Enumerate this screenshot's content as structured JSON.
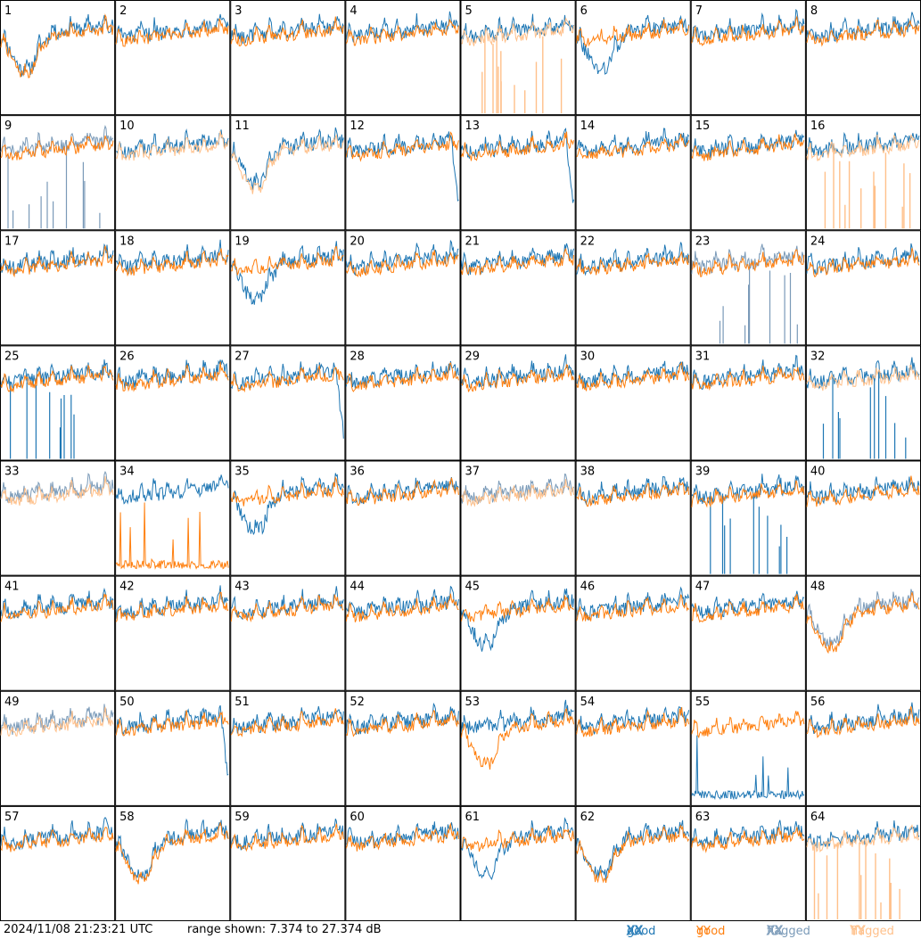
{
  "footer": {
    "timestamp": "2024/11/08 21:23:21 UTC",
    "range_text": "range shown: 7.374 to 27.374 dB"
  },
  "legend": [
    {
      "label_a": "good",
      "label_b": "XX",
      "color": "#1f77b4"
    },
    {
      "label_a": "good",
      "label_b": "YY",
      "color": "#ff7f0e"
    },
    {
      "label_a": "flagged",
      "label_b": "XX",
      "color": "#7a9ab8"
    },
    {
      "label_a": "flagged",
      "label_b": "YY",
      "color": "#ffc08a"
    }
  ],
  "colors": {
    "good_xx": "#1f77b4",
    "good_yy": "#ff7f0e",
    "flagged_xx": "#7a9ab8",
    "flagged_yy": "#ffc08a"
  },
  "chart_data": {
    "type": "line",
    "layout": "small multiples, 8 columns x 8 rows",
    "units": "dB",
    "ylim": [
      7.374,
      27.374
    ],
    "panels": [
      {
        "id": "1",
        "xx": "good",
        "yy": "good",
        "note": "dip"
      },
      {
        "id": "2",
        "xx": "good",
        "yy": "good"
      },
      {
        "id": "3",
        "xx": "good",
        "yy": "good"
      },
      {
        "id": "4",
        "xx": "good",
        "yy": "good"
      },
      {
        "id": "5",
        "xx": "good",
        "yy": "flagged",
        "note": "yy spikes"
      },
      {
        "id": "6",
        "xx": "good",
        "yy": "good",
        "note": "xx dip"
      },
      {
        "id": "7",
        "xx": "good",
        "yy": "good"
      },
      {
        "id": "8",
        "xx": "good",
        "yy": "good"
      },
      {
        "id": "9",
        "xx": "flagged",
        "yy": "good",
        "note": "xx spikes"
      },
      {
        "id": "10",
        "xx": "good",
        "yy": "flagged"
      },
      {
        "id": "11",
        "xx": "good",
        "yy": "flagged",
        "note": "dip"
      },
      {
        "id": "12",
        "xx": "good",
        "yy": "good",
        "note": "drop"
      },
      {
        "id": "13",
        "xx": "good",
        "yy": "good",
        "note": "drop"
      },
      {
        "id": "14",
        "xx": "good",
        "yy": "good"
      },
      {
        "id": "15",
        "xx": "good",
        "yy": "good"
      },
      {
        "id": "16",
        "xx": "good",
        "yy": "flagged",
        "note": "yy spikes"
      },
      {
        "id": "17",
        "xx": "good",
        "yy": "good"
      },
      {
        "id": "18",
        "xx": "good",
        "yy": "good"
      },
      {
        "id": "19",
        "xx": "good",
        "yy": "good",
        "note": "xx dip"
      },
      {
        "id": "20",
        "xx": "good",
        "yy": "good"
      },
      {
        "id": "21",
        "xx": "good",
        "yy": "good"
      },
      {
        "id": "22",
        "xx": "good",
        "yy": "good"
      },
      {
        "id": "23",
        "xx": "flagged",
        "yy": "good",
        "note": "noisy"
      },
      {
        "id": "24",
        "xx": "good",
        "yy": "good"
      },
      {
        "id": "25",
        "xx": "good",
        "yy": "good",
        "note": "xx spikes"
      },
      {
        "id": "26",
        "xx": "good",
        "yy": "good"
      },
      {
        "id": "27",
        "xx": "good",
        "yy": "good",
        "note": "drop"
      },
      {
        "id": "28",
        "xx": "good",
        "yy": "good"
      },
      {
        "id": "29",
        "xx": "good",
        "yy": "good"
      },
      {
        "id": "30",
        "xx": "good",
        "yy": "good"
      },
      {
        "id": "31",
        "xx": "good",
        "yy": "good"
      },
      {
        "id": "32",
        "xx": "good",
        "yy": "flagged",
        "note": "xx spikes"
      },
      {
        "id": "33",
        "xx": "flagged",
        "yy": "flagged"
      },
      {
        "id": "34",
        "xx": "good",
        "yy": "good",
        "note": "yy low"
      },
      {
        "id": "35",
        "xx": "good",
        "yy": "good",
        "note": "xx dip"
      },
      {
        "id": "36",
        "xx": "good",
        "yy": "good"
      },
      {
        "id": "37",
        "xx": "flagged",
        "yy": "flagged"
      },
      {
        "id": "38",
        "xx": "good",
        "yy": "good"
      },
      {
        "id": "39",
        "xx": "good",
        "yy": "good",
        "note": "xx spikes"
      },
      {
        "id": "40",
        "xx": "good",
        "yy": "good"
      },
      {
        "id": "41",
        "xx": "good",
        "yy": "good"
      },
      {
        "id": "42",
        "xx": "good",
        "yy": "good"
      },
      {
        "id": "43",
        "xx": "good",
        "yy": "good"
      },
      {
        "id": "44",
        "xx": "good",
        "yy": "good"
      },
      {
        "id": "45",
        "xx": "good",
        "yy": "good",
        "note": "xx dip"
      },
      {
        "id": "46",
        "xx": "good",
        "yy": "good"
      },
      {
        "id": "47",
        "xx": "good",
        "yy": "good"
      },
      {
        "id": "48",
        "xx": "flagged",
        "yy": "good",
        "note": "dip"
      },
      {
        "id": "49",
        "xx": "flagged",
        "yy": "flagged"
      },
      {
        "id": "50",
        "xx": "good",
        "yy": "good",
        "note": "drop"
      },
      {
        "id": "51",
        "xx": "good",
        "yy": "good"
      },
      {
        "id": "52",
        "xx": "good",
        "yy": "good"
      },
      {
        "id": "53",
        "xx": "good",
        "yy": "good",
        "note": "yy dip"
      },
      {
        "id": "54",
        "xx": "good",
        "yy": "good"
      },
      {
        "id": "55",
        "xx": "good",
        "yy": "good",
        "note": "xx low"
      },
      {
        "id": "56",
        "xx": "good",
        "yy": "good"
      },
      {
        "id": "57",
        "xx": "good",
        "yy": "good"
      },
      {
        "id": "58",
        "xx": "good",
        "yy": "good",
        "note": "dip"
      },
      {
        "id": "59",
        "xx": "good",
        "yy": "good"
      },
      {
        "id": "60",
        "xx": "good",
        "yy": "good"
      },
      {
        "id": "61",
        "xx": "good",
        "yy": "good",
        "note": "xx dip"
      },
      {
        "id": "62",
        "xx": "good",
        "yy": "good",
        "note": "dip"
      },
      {
        "id": "63",
        "xx": "good",
        "yy": "good"
      },
      {
        "id": "64",
        "xx": "good",
        "yy": "flagged",
        "note": "yy spikes"
      }
    ]
  }
}
